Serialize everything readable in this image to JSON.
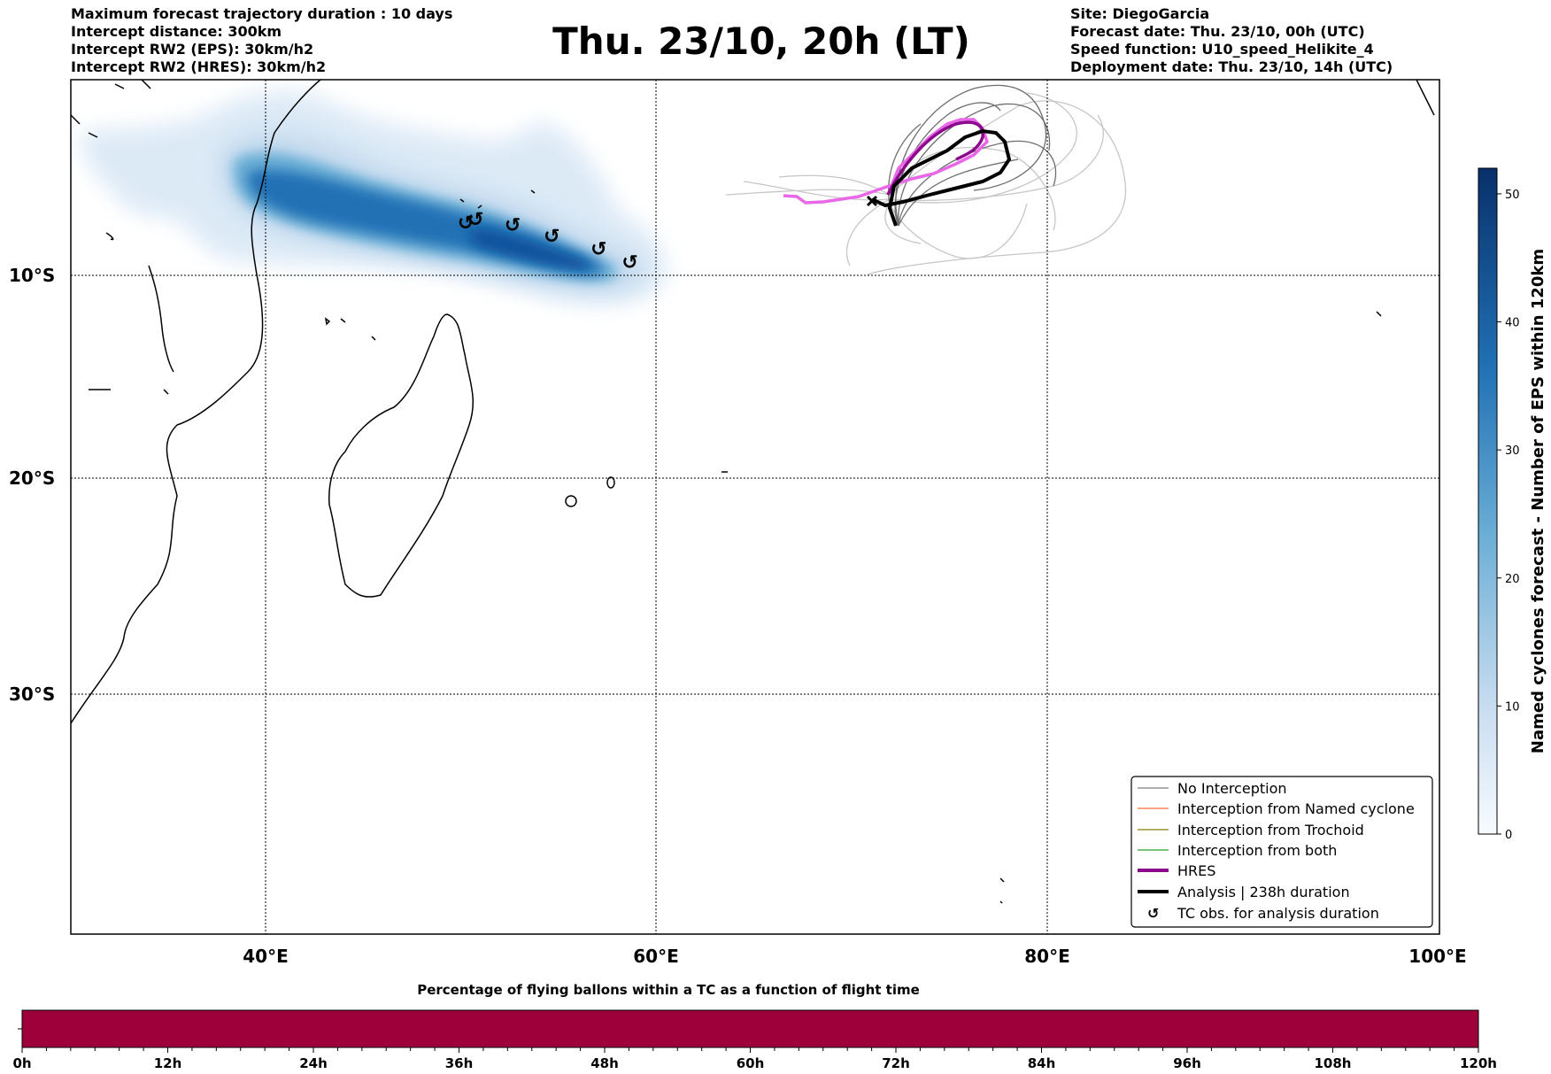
{
  "header_left": {
    "line1": "Maximum forecast trajectory duration : 10 days",
    "line2": "Intercept distance: 300km",
    "line3": "Intercept RW2 (EPS):  30km/h2",
    "line4": "Intercept RW2 (HRES): 30km/h2"
  },
  "title": "Thu. 23/10, 20h (LT)",
  "header_right": {
    "line1": "Site: DiegoGarcia",
    "line2": "Forecast date: Thu. 23/10, 00h (UTC)",
    "line3": "Speed function: U10_speed_Helikite_4",
    "line4": "Deployment date: Thu. 23/10, 14h (UTC)"
  },
  "map": {
    "lon_range": [
      30,
      100
    ],
    "lat_range": [
      -42,
      0
    ],
    "lat_labels": [
      {
        "lat": -10,
        "text": "10°S"
      },
      {
        "lat": -20,
        "text": "20°S"
      },
      {
        "lat": -30,
        "text": "30°S"
      }
    ],
    "lon_labels": [
      {
        "lon": 40,
        "text": "40°E"
      },
      {
        "lon": 60,
        "text": "60°E"
      },
      {
        "lon": 80,
        "text": "80°E"
      },
      {
        "lon": 100,
        "text": "100°E"
      }
    ],
    "tc_markers": [
      {
        "lon": 50.2,
        "lat": -8.1
      },
      {
        "lon": 50.7,
        "lat": -7.9
      },
      {
        "lon": 52.6,
        "lat": -8.2
      },
      {
        "lon": 54.6,
        "lat": -8.8
      },
      {
        "lon": 57.0,
        "lat": -9.5
      },
      {
        "lon": 58.6,
        "lat": -10.2
      }
    ]
  },
  "colorbar": {
    "title": "Named cyclones forecast - Number of EPS within 120km",
    "ticks": [
      0,
      10,
      20,
      30,
      40,
      50
    ],
    "max": 52,
    "color_low": "#f7fbff",
    "color_high": "#08306b"
  },
  "legend": {
    "items": [
      {
        "label": "No Interception",
        "color": "#808080",
        "style": "thin"
      },
      {
        "label": "Interception from Named cyclone",
        "color": "#ff6a33",
        "style": "thin"
      },
      {
        "label": "Interception from Trochoid",
        "color": "#808000",
        "style": "thin"
      },
      {
        "label": "Interception from both",
        "color": "#2ca02c",
        "style": "thin"
      },
      {
        "label": "HRES",
        "color": "#8b0a8b",
        "style": "thick"
      },
      {
        "label": "Analysis | 238h duration",
        "color": "#000000",
        "style": "thick"
      },
      {
        "label": "TC obs. for analysis duration",
        "color": "#000000",
        "style": "marker"
      }
    ]
  },
  "time_bar": {
    "title": "Percentage of flying ballons within a TC as a function of flight time",
    "ticks": [
      "0h",
      "12h",
      "24h",
      "36h",
      "48h",
      "60h",
      "72h",
      "84h",
      "96h",
      "108h",
      "120h"
    ],
    "bar_color": "#9e003a"
  }
}
